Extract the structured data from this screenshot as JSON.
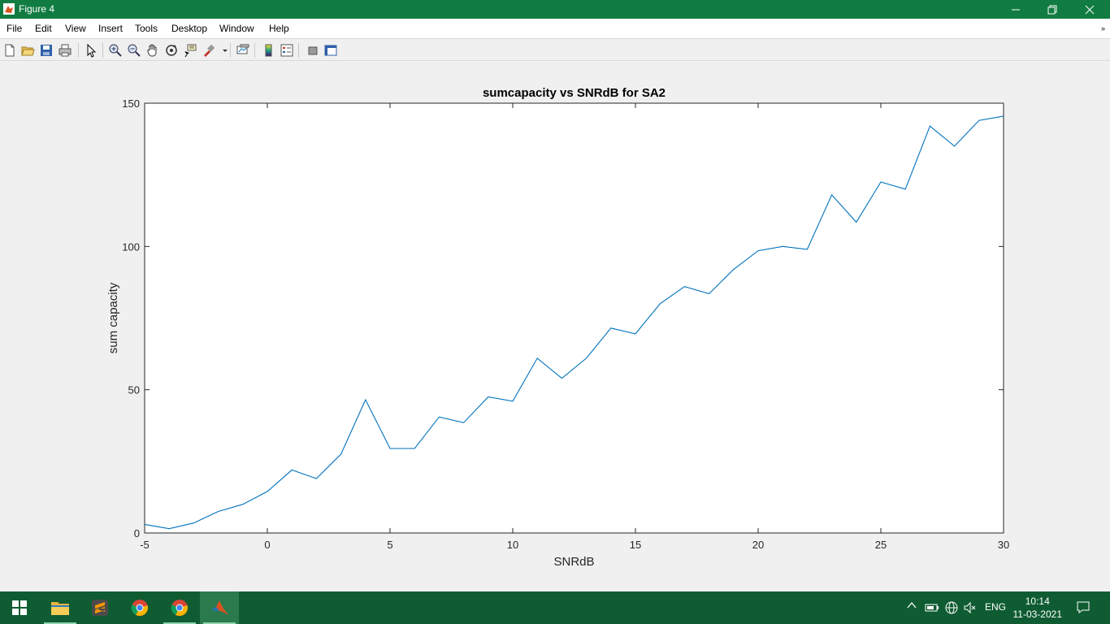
{
  "window": {
    "title": "Figure 4"
  },
  "menu": [
    "File",
    "Edit",
    "View",
    "Insert",
    "Tools",
    "Desktop",
    "Window",
    "Help"
  ],
  "menu_overflow": "»",
  "toolbar": [
    "new-figure",
    "open-file",
    "save",
    "print",
    "edit-plot",
    "zoom-in",
    "zoom-out",
    "pan",
    "rotate-3d",
    "data-cursor",
    "brush",
    "link-plot",
    "insert-colorbar",
    "insert-legend",
    "hide-plot-tools",
    "show-plot-tools"
  ],
  "chart_data": {
    "type": "line",
    "title": "sumcapacity vs SNRdB for SA2",
    "xlabel": "SNRdB",
    "ylabel": "sum capacity",
    "xlim": [
      -5,
      30
    ],
    "ylim": [
      0,
      150
    ],
    "xticks": [
      "-5",
      "0",
      "5",
      "10",
      "15",
      "20",
      "25",
      "30"
    ],
    "yticks": [
      "0",
      "50",
      "100",
      "150"
    ],
    "grid": false,
    "line_color": "#0072bd",
    "x": [
      -5,
      -4,
      -3,
      -2,
      -1,
      0,
      1,
      2,
      3,
      4,
      5,
      6,
      7,
      8,
      9,
      10,
      11,
      12,
      13,
      14,
      15,
      16,
      17,
      18,
      19,
      20,
      21,
      22,
      23,
      24,
      25,
      26,
      27,
      28,
      29,
      30
    ],
    "y": [
      3,
      1.5,
      3.5,
      7.5,
      10,
      14.5,
      22,
      19,
      27.5,
      46.5,
      29.5,
      29.5,
      40.5,
      38.5,
      47.5,
      46,
      61,
      54,
      61,
      71.5,
      69.5,
      80,
      86,
      83.5,
      92,
      98.5,
      100,
      99,
      118,
      108.5,
      122.5,
      120,
      142,
      135,
      144,
      145.5
    ]
  },
  "taskbar": {
    "apps": [
      "windows-start",
      "file-explorer",
      "sublime-text",
      "chrome",
      "chrome-profile",
      "matlab"
    ],
    "language": "ENG",
    "time": "10:14",
    "date": "11-03-2021"
  }
}
